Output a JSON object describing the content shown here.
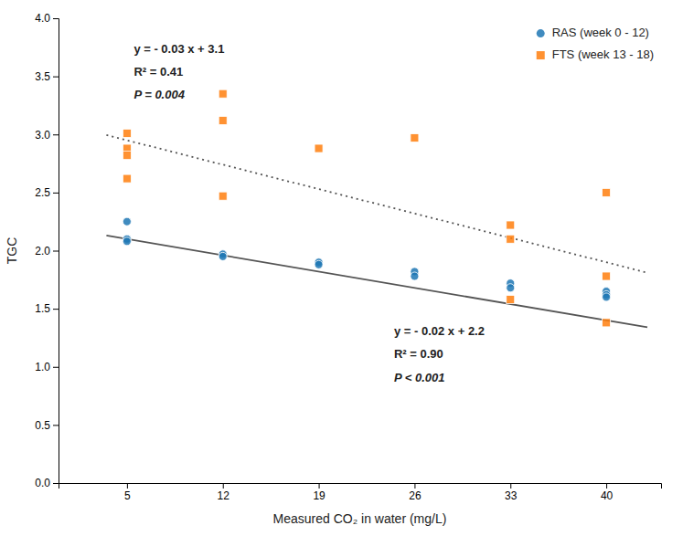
{
  "chart_data": {
    "type": "scatter",
    "xlabel": "Measured CO₂ in water (mg/L)",
    "ylabel": "TGC",
    "xlim": [
      0,
      44
    ],
    "ylim": [
      0.0,
      4.0
    ],
    "xticks": [
      5,
      12,
      19,
      26,
      33,
      40
    ],
    "yticks": [
      {
        "value": 0.0,
        "label": "0.0"
      },
      0.5,
      {
        "value": 1.0,
        "label": "1.0"
      },
      1.5,
      {
        "value": 2.0,
        "label": "2.0"
      },
      2.5,
      {
        "value": 3.0,
        "label": "3.0"
      },
      3.5,
      {
        "value": 4.0,
        "label": "4.0"
      }
    ],
    "grid": false,
    "legend": "upper right",
    "series": [
      {
        "name": "RAS (week 0 - 12)",
        "type": "scatter",
        "marker": "circle",
        "x": [
          5,
          5,
          5,
          12,
          12,
          19,
          19,
          26,
          26,
          33,
          33,
          40,
          40,
          40
        ],
        "values": [
          2.25,
          2.1,
          2.08,
          1.97,
          1.95,
          1.9,
          1.88,
          1.82,
          1.78,
          1.72,
          1.68,
          1.65,
          1.62,
          1.6
        ]
      },
      {
        "name": "FTS (week 13 - 18)",
        "type": "scatter",
        "marker": "square",
        "x": [
          5,
          5,
          5,
          5,
          12,
          12,
          12,
          19,
          26,
          33,
          33,
          33,
          40,
          40,
          40
        ],
        "values": [
          3.01,
          2.88,
          2.82,
          2.62,
          3.35,
          3.12,
          2.47,
          2.88,
          2.97,
          2.1,
          2.22,
          1.58,
          2.5,
          1.78,
          1.38
        ]
      },
      {
        "type": "line",
        "line_style": "solid",
        "x": [
          3.5,
          43
        ],
        "values": [
          2.13,
          1.34
        ]
      },
      {
        "type": "line",
        "line_style": "dotted",
        "x": [
          3.5,
          43
        ],
        "values": [
          2.995,
          1.81
        ]
      }
    ],
    "annotations": [
      {
        "text": "y = - 0.03 x + 3.1",
        "x": 5.5,
        "y": 3.78
      },
      {
        "text": "R² = 0.41",
        "x": 5.5,
        "y": 3.58
      },
      {
        "text": "P = 0.004",
        "x": 5.5,
        "y": 3.38
      },
      {
        "text": "y = - 0.02 x + 2.2",
        "x": 24.5,
        "y": 1.35
      },
      {
        "text": "R² = 0.90",
        "x": 24.5,
        "y": 1.15
      },
      {
        "text": "P < 0.001",
        "x": 24.5,
        "y": 0.95
      }
    ]
  }
}
